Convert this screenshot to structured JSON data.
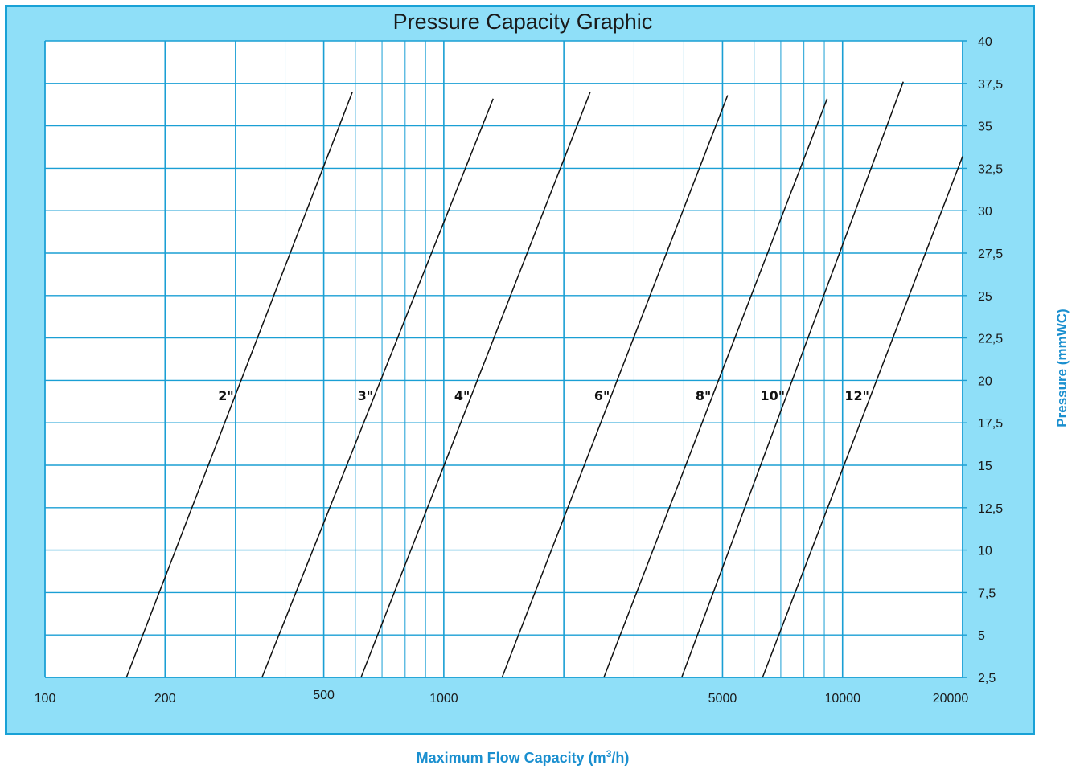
{
  "chart_data": {
    "type": "line",
    "title": "Pressure Capacity Graphic",
    "xlabel": "Maximum Flow Capacity (m",
    "xlabel_sup": "3",
    "xlabel_tail": "/h)",
    "ylabel": "Pressure (mmWC)",
    "x_scale": "log",
    "xlim": [
      100,
      20000
    ],
    "ylim": [
      2.5,
      40
    ],
    "x_tick_labels": [
      {
        "value": 100,
        "label": "100"
      },
      {
        "value": 200,
        "label": "200"
      },
      {
        "value": 500,
        "label": "500"
      },
      {
        "value": 1000,
        "label": "1000"
      },
      {
        "value": 5000,
        "label": "5000"
      },
      {
        "value": 10000,
        "label": "10000"
      },
      {
        "value": 20000,
        "label": "20000"
      }
    ],
    "y_ticks": [
      2.5,
      5,
      7.5,
      10,
      12.5,
      15,
      17.5,
      20,
      22.5,
      25,
      27.5,
      30,
      32.5,
      35,
      37.5,
      40
    ],
    "y_tick_labels": [
      "2,5",
      "5",
      "7,5",
      "10",
      "12,5",
      "15",
      "17,5",
      "20",
      "22,5",
      "25",
      "27,5",
      "30",
      "32,5",
      "35",
      "37,5",
      "40"
    ],
    "grid": true,
    "series": [
      {
        "name": "2\"",
        "x": [
          160,
          590
        ],
        "y": [
          2.5,
          37.0
        ]
      },
      {
        "name": "3\"",
        "x": [
          350,
          1330
        ],
        "y": [
          2.5,
          36.6
        ]
      },
      {
        "name": "4\"",
        "x": [
          620,
          2330
        ],
        "y": [
          2.5,
          37.0
        ]
      },
      {
        "name": "6\"",
        "x": [
          1400,
          5150
        ],
        "y": [
          2.5,
          36.8
        ]
      },
      {
        "name": "8\"",
        "x": [
          2520,
          9150
        ],
        "y": [
          2.5,
          36.6
        ]
      },
      {
        "name": "10\"",
        "x": [
          3950,
          14200
        ],
        "y": [
          2.5,
          37.6
        ]
      },
      {
        "name": "12\"",
        "x": [
          6300,
          20000
        ],
        "y": [
          2.5,
          33.2
        ]
      }
    ],
    "series_label_y": 19.5
  },
  "colors": {
    "background": "#8fdff8",
    "border": "#19a1d6",
    "plot_area": "#ffffff",
    "grid": "#1a9fd4",
    "line": "#111111",
    "axis_title": "#1a8fcf"
  }
}
